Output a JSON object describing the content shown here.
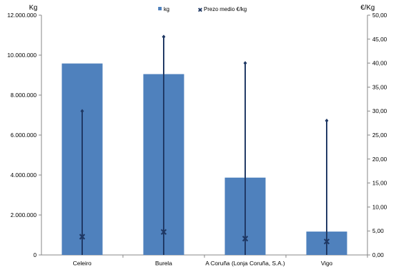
{
  "chart_data": {
    "type": "bar",
    "categories": [
      "Celeiro",
      "Burela",
      "A Coruña (Lonja Coruña, S.A.)",
      "Vigo"
    ],
    "series": [
      {
        "name": "kg",
        "type": "bar",
        "axis": "left",
        "color": "#4f81bd",
        "values": [
          9580000,
          9050000,
          3870000,
          1170000
        ]
      },
      {
        "name": "Prezo medio €/kg",
        "type": "range-marker",
        "axis": "right",
        "color": "#1f3864",
        "values": [
          3.8,
          4.8,
          3.4,
          2.8
        ],
        "min": [
          0,
          0,
          0,
          0
        ],
        "max": [
          30.0,
          45.5,
          40.0,
          28.0
        ]
      }
    ],
    "y_left": {
      "label": "Kg",
      "ylim": [
        0,
        12000000
      ],
      "ticks": [
        0,
        2000000,
        4000000,
        6000000,
        8000000,
        10000000,
        12000000
      ],
      "tick_labels": [
        "0",
        "2.000.000",
        "4.000.000",
        "6.000.000",
        "8.000.000",
        "10.000.000",
        "12.000.000"
      ]
    },
    "y_right": {
      "label": "€/Kg",
      "ylim": [
        0,
        50
      ],
      "ticks": [
        0,
        5,
        10,
        15,
        20,
        25,
        30,
        35,
        40,
        45,
        50
      ],
      "tick_labels": [
        "0,00",
        "5,00",
        "10,00",
        "15,00",
        "20,00",
        "25,00",
        "30,00",
        "35,00",
        "40,00",
        "45,00",
        "50,00"
      ]
    },
    "legend_position": "top-center",
    "grid": false
  }
}
